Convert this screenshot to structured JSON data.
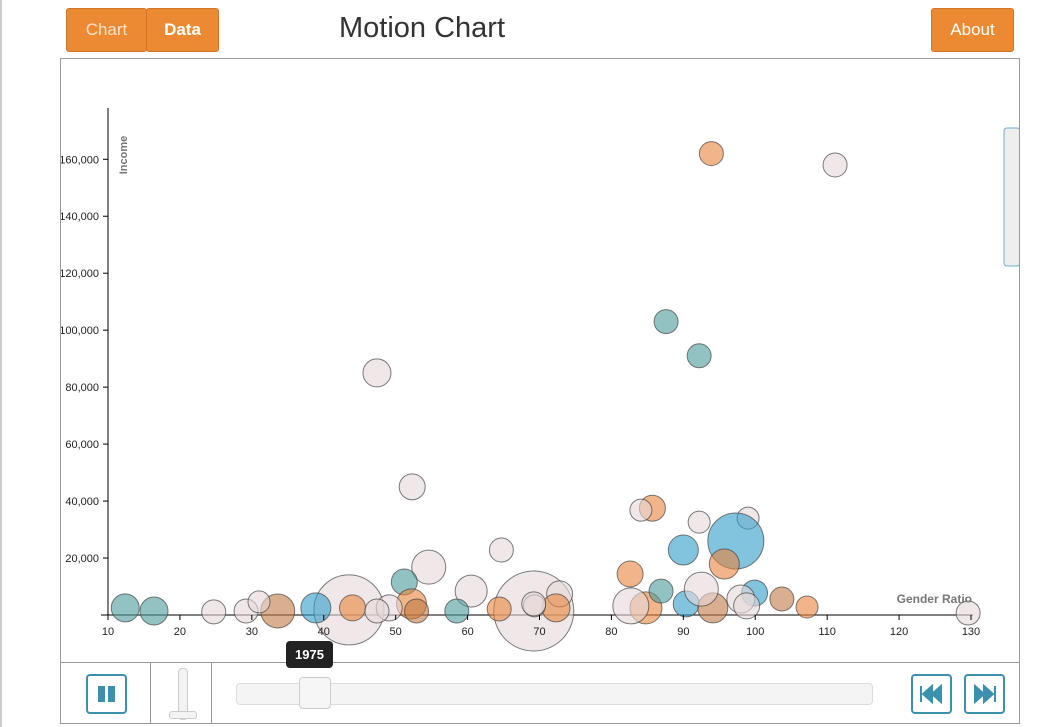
{
  "ui": {
    "tabs": [
      "Chart",
      "Data"
    ],
    "about": "About",
    "year": "1975"
  },
  "chart_data": {
    "type": "bubble",
    "title": "Motion Chart",
    "x_label": "Gender Ratio",
    "y_label": "Income",
    "xlim": [
      10,
      130
    ],
    "xticks": [
      10,
      20,
      30,
      40,
      50,
      60,
      70,
      80,
      90,
      100,
      110,
      120,
      130
    ],
    "ylim": [
      0,
      178000
    ],
    "yticks": [
      {
        "value": 20000,
        "label": "20,000"
      },
      {
        "value": 40000,
        "label": "40,000"
      },
      {
        "value": 60000,
        "label": "60,000"
      },
      {
        "value": 80000,
        "label": "80,000"
      },
      {
        "value": 100000,
        "label": "100,000"
      },
      {
        "value": 120000,
        "label": "120,000"
      },
      {
        "value": 140000,
        "label": "140,000"
      },
      {
        "value": 160000,
        "label": "160,000"
      }
    ],
    "x": [
      93.9,
      111.1,
      87.6,
      92.2,
      47.4,
      52.3,
      85.7,
      84.1,
      99.0,
      92.2,
      97.3,
      90.0,
      64.7,
      54.6,
      95.7,
      51.2,
      82.6,
      12.4,
      16.4,
      43.5,
      69.2,
      33.6,
      38.9,
      44.0,
      52.2,
      60.5,
      72.8,
      99.9,
      103.7,
      107.2,
      129.6,
      90.4,
      84.8,
      82.7,
      72.3,
      49.1,
      24.7,
      29.2,
      31.0,
      69.3,
      94.1,
      98.0,
      92.5,
      69.2,
      47.4,
      58.5,
      52.9,
      86.9,
      64.4,
      98.8
    ],
    "values": [
      162000,
      158000,
      103000,
      91000,
      85000,
      45000,
      37500,
      36800,
      34000,
      32600,
      26000,
      22800,
      22800,
      16800,
      17900,
      11600,
      14400,
      2500,
      1400,
      1800,
      1400,
      1400,
      2500,
      2500,
      3900,
      8400,
      7400,
      7700,
      5600,
      2800,
      700,
      3900,
      2500,
      3200,
      2500,
      2500,
      1100,
      1400,
      4600,
      3200,
      2500,
      5600,
      9100,
      3900,
      1400,
      1400,
      1400,
      8400,
      2100,
      3200
    ],
    "sizes": [
      12,
      12,
      12,
      12,
      14,
      13,
      13,
      11,
      11,
      11,
      28,
      15,
      12,
      17,
      15,
      13,
      13,
      14,
      14,
      35,
      40,
      17,
      15,
      13,
      15,
      16,
      13,
      13,
      12,
      11,
      12,
      13,
      16,
      18,
      14,
      13,
      12,
      12,
      11,
      11,
      15,
      14,
      17,
      12,
      12,
      12,
      12,
      12,
      12,
      13
    ],
    "colors": [
      "#e8843a",
      "#e6d8d8",
      "#4a9a9a",
      "#4a9a9a",
      "#e6d8d8",
      "#e6d8d8",
      "#e8843a",
      "#e6d8d8",
      "#e6d8d8",
      "#e6d8d8",
      "#2f9bc8",
      "#2f9bc8",
      "#e6d8d8",
      "#e6d8d8",
      "#e8843a",
      "#4a9a9a",
      "#e8843a",
      "#4a9a9a",
      "#4a9a9a",
      "#e6d8d8",
      "#e6d8d8",
      "#c07a45",
      "#2f9bc8",
      "#e8843a",
      "#e8843a",
      "#e6d8d8",
      "#e6d8d8",
      "#2f9bc8",
      "#c07a45",
      "#e8843a",
      "#e6d8d8",
      "#2f9bc8",
      "#e8843a",
      "#e6d8d8",
      "#e8843a",
      "#e6d8d8",
      "#e6d8d8",
      "#e6d8d8",
      "#e6d8d8",
      "#e6d8d8",
      "#c07a45",
      "#e6d8d8",
      "#e6d8d8",
      "#e6d8d8",
      "#e6d8d8",
      "#4a9a9a",
      "#c07a45",
      "#4a9a9a",
      "#e8843a",
      "#e6d8d8"
    ]
  }
}
